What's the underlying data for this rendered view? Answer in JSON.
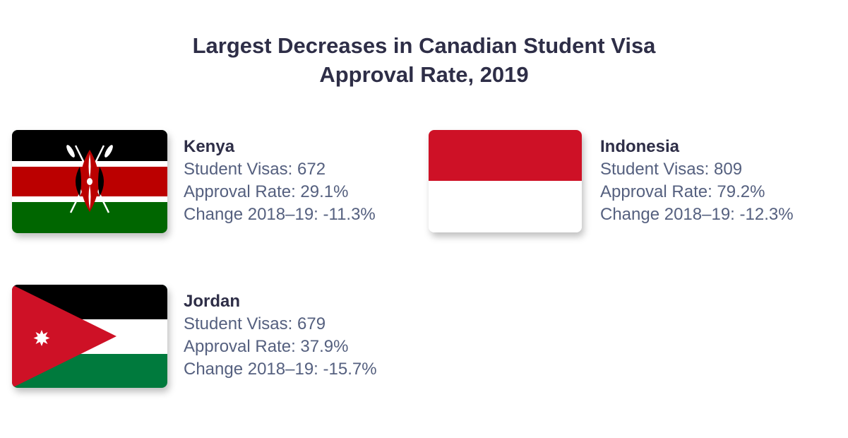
{
  "title": {
    "line1": "Largest Decreases in Canadian Student Visa",
    "line2": "Approval Rate, 2019"
  },
  "countries": [
    {
      "name": "Kenya",
      "flag_icon": "kenya-flag-icon",
      "student_visas": "Student Visas: 672",
      "approval_rate": "Approval Rate: 29.1%",
      "change": "Change 2018–19: -11.3%"
    },
    {
      "name": "Indonesia",
      "flag_icon": "indonesia-flag-icon",
      "student_visas": "Student Visas: 809",
      "approval_rate": "Approval Rate: 79.2%",
      "change": "Change 2018–19: -12.3%"
    },
    {
      "name": "Jordan",
      "flag_icon": "jordan-flag-icon",
      "student_visas": "Student Visas: 679",
      "approval_rate": "Approval Rate: 37.9%",
      "change": "Change 2018–19: -15.7%"
    }
  ],
  "colors": {
    "title": "#2e2e47",
    "text": "#55607f"
  }
}
